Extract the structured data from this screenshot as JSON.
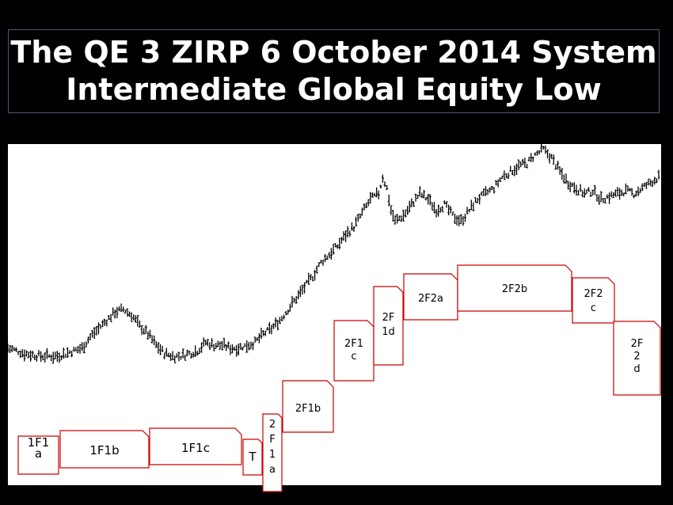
{
  "title": {
    "line1": "The QE 3 ZIRP 6 October 2014 System",
    "line2": "Intermediate Global Equity Low"
  },
  "colors": {
    "background": "#000000",
    "chart_background": "#ffffff",
    "bars": "#000000",
    "label_border": "#cc0000",
    "title_text": "#ffffff"
  },
  "chart_data": {
    "type": "ohlc",
    "title": "",
    "xlabel": "",
    "ylabel": "",
    "ylim": [
      0,
      100
    ],
    "grid": false,
    "axes_shown": false,
    "series": [
      {
        "name": "",
        "anchors": [
          [
            0,
            26
          ],
          [
            4,
            24
          ],
          [
            8,
            23
          ],
          [
            12,
            23
          ],
          [
            16,
            25
          ],
          [
            18,
            26
          ],
          [
            20,
            30
          ],
          [
            24,
            36
          ],
          [
            26,
            39
          ],
          [
            28,
            40
          ],
          [
            30,
            38
          ],
          [
            32,
            34
          ],
          [
            34,
            31
          ],
          [
            36,
            27
          ],
          [
            38,
            24
          ],
          [
            40,
            23
          ],
          [
            42,
            23
          ],
          [
            44,
            24
          ],
          [
            46,
            25
          ],
          [
            48,
            28
          ],
          [
            50,
            27
          ],
          [
            52,
            27
          ],
          [
            54,
            26
          ],
          [
            56,
            26
          ],
          [
            58,
            27
          ],
          [
            60,
            28
          ],
          [
            62,
            31
          ],
          [
            64,
            33
          ],
          [
            66,
            36
          ],
          [
            68,
            40
          ],
          [
            70,
            44
          ],
          [
            72,
            48
          ],
          [
            74,
            52
          ],
          [
            76,
            57
          ],
          [
            78,
            60
          ],
          [
            80,
            63
          ],
          [
            82,
            67
          ],
          [
            84,
            70
          ],
          [
            86,
            75
          ],
          [
            88,
            80
          ],
          [
            90,
            82
          ],
          [
            91,
            88
          ],
          [
            92,
            84
          ],
          [
            93,
            76
          ],
          [
            94,
            72
          ],
          [
            96,
            74
          ],
          [
            98,
            78
          ],
          [
            100,
            82
          ],
          [
            102,
            80
          ],
          [
            104,
            76
          ],
          [
            106,
            78
          ],
          [
            108,
            74
          ],
          [
            110,
            72
          ],
          [
            112,
            76
          ],
          [
            114,
            80
          ],
          [
            116,
            82
          ],
          [
            118,
            84
          ],
          [
            120,
            88
          ],
          [
            122,
            90
          ],
          [
            124,
            92
          ],
          [
            126,
            93
          ],
          [
            128,
            96
          ],
          [
            130,
            98
          ],
          [
            132,
            95
          ],
          [
            134,
            90
          ],
          [
            136,
            86
          ],
          [
            138,
            84
          ],
          [
            140,
            82
          ],
          [
            142,
            83
          ],
          [
            144,
            80
          ],
          [
            146,
            81
          ],
          [
            148,
            82
          ],
          [
            150,
            83
          ],
          [
            152,
            82
          ],
          [
            154,
            84
          ],
          [
            156,
            86
          ],
          [
            158,
            88
          ]
        ]
      }
    ],
    "annotations": [
      {
        "lines": [
          "1F1",
          "a"
        ]
      },
      {
        "lines": [
          "1F1b"
        ]
      },
      {
        "lines": [
          "1F1c"
        ]
      },
      {
        "lines": [
          "T"
        ]
      },
      {
        "lines": [
          "2",
          "F",
          "1",
          "a"
        ]
      },
      {
        "lines": [
          "2F1b"
        ]
      },
      {
        "lines": [
          "2F1",
          "c"
        ]
      },
      {
        "lines": [
          "2F",
          "1d"
        ]
      },
      {
        "lines": [
          "2F2a"
        ]
      },
      {
        "lines": [
          "2F2b"
        ]
      },
      {
        "lines": [
          "2F2",
          "c"
        ]
      },
      {
        "lines": [
          "2F",
          "2",
          "d"
        ]
      }
    ]
  }
}
